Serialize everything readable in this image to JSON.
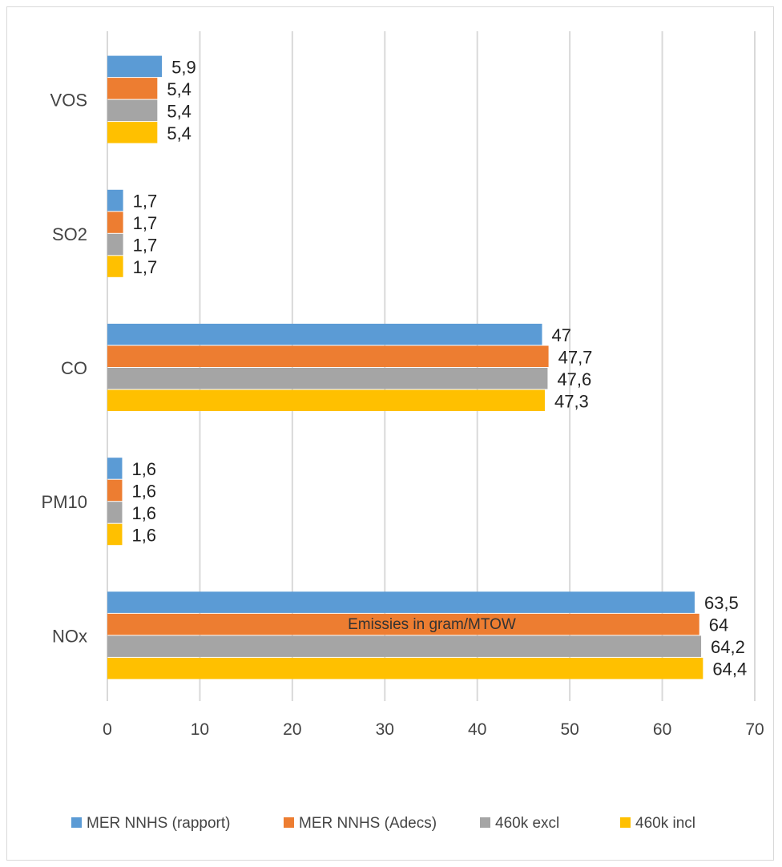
{
  "chart_data": {
    "type": "bar",
    "orientation": "horizontal",
    "categories": [
      "VOS",
      "SO2",
      "CO",
      "PM10",
      "NOx"
    ],
    "series": [
      {
        "name": "MER NNHS (rapport)",
        "color": "#5b9bd5",
        "values": [
          5.9,
          1.7,
          47,
          1.6,
          63.5
        ],
        "labels": [
          "5,9",
          "1,7",
          "47",
          "1,6",
          "63,5"
        ]
      },
      {
        "name": "MER NNHS (Adecs)",
        "color": "#ed7d31",
        "values": [
          5.4,
          1.7,
          47.7,
          1.6,
          64
        ],
        "labels": [
          "5,4",
          "1,7",
          "47,7",
          "1,6",
          "64"
        ]
      },
      {
        "name": "460k excl",
        "color": "#a5a5a5",
        "values": [
          5.4,
          1.7,
          47.6,
          1.6,
          64.2
        ],
        "labels": [
          "5,4",
          "1,7",
          "47,6",
          "1,6",
          "64,2"
        ]
      },
      {
        "name": "460k incl",
        "color": "#ffc000",
        "values": [
          5.4,
          1.7,
          47.3,
          1.6,
          64.4
        ],
        "labels": [
          "5,4",
          "1,7",
          "47,3",
          "1,6",
          "64,4"
        ]
      }
    ],
    "xlabel": "Emissies in gram/MTOW",
    "ylabel": "",
    "xlim": [
      0,
      70
    ],
    "xticks": [
      0,
      10,
      20,
      30,
      40,
      50,
      60,
      70
    ],
    "xtick_labels": [
      "0",
      "10",
      "20",
      "30",
      "40",
      "50",
      "60",
      "70"
    ],
    "grid": "vertical",
    "legend_position": "bottom"
  }
}
